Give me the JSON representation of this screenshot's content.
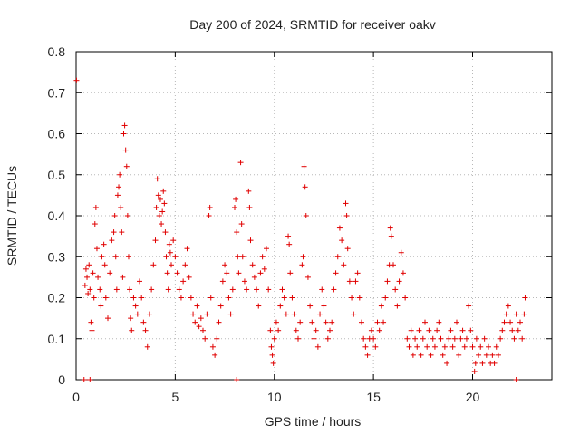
{
  "chart_data": {
    "type": "scatter",
    "title": "Day 200 of 2024, SRMTID for receiver oakv",
    "xlabel": "GPS time / hours",
    "ylabel": "SRMTID / TECUs",
    "xlim": [
      0,
      24
    ],
    "ylim": [
      0,
      0.8
    ],
    "xticks": [
      0,
      5,
      10,
      15,
      20
    ],
    "yticks": [
      0,
      0.1,
      0.2,
      0.3,
      0.4,
      0.5,
      0.6,
      0.7,
      0.8
    ],
    "xtick_labels": [
      "0",
      "5",
      "10",
      "15",
      "20"
    ],
    "ytick_labels": [
      "0",
      "0.1",
      "0.2",
      "0.3",
      "0.4",
      "0.5",
      "0.6",
      "0.7",
      "0.8"
    ],
    "grid": true,
    "marker": "plus",
    "color": "#e00000",
    "series": [
      {
        "name": "SRMTID",
        "points": [
          [
            0.02,
            0.73
          ],
          [
            0.4,
            0.0
          ],
          [
            0.7,
            0.0
          ],
          [
            8.1,
            0.0
          ],
          [
            22.2,
            0.0
          ],
          [
            0.45,
            0.23
          ],
          [
            0.5,
            0.27
          ],
          [
            0.55,
            0.25
          ],
          [
            0.6,
            0.21
          ],
          [
            0.65,
            0.28
          ],
          [
            0.7,
            0.22
          ],
          [
            0.75,
            0.14
          ],
          [
            0.8,
            0.12
          ],
          [
            0.85,
            0.26
          ],
          [
            0.9,
            0.2
          ],
          [
            0.95,
            0.38
          ],
          [
            1.0,
            0.42
          ],
          [
            1.05,
            0.32
          ],
          [
            1.1,
            0.25
          ],
          [
            1.2,
            0.22
          ],
          [
            1.25,
            0.18
          ],
          [
            1.3,
            0.3
          ],
          [
            1.4,
            0.33
          ],
          [
            1.45,
            0.28
          ],
          [
            1.5,
            0.2
          ],
          [
            1.6,
            0.15
          ],
          [
            1.7,
            0.26
          ],
          [
            1.8,
            0.34
          ],
          [
            1.9,
            0.36
          ],
          [
            1.95,
            0.4
          ],
          [
            2.0,
            0.3
          ],
          [
            2.05,
            0.22
          ],
          [
            2.1,
            0.45
          ],
          [
            2.15,
            0.47
          ],
          [
            2.2,
            0.5
          ],
          [
            2.25,
            0.42
          ],
          [
            2.3,
            0.36
          ],
          [
            2.35,
            0.25
          ],
          [
            2.4,
            0.6
          ],
          [
            2.45,
            0.62
          ],
          [
            2.5,
            0.56
          ],
          [
            2.55,
            0.52
          ],
          [
            2.6,
            0.4
          ],
          [
            2.65,
            0.3
          ],
          [
            2.7,
            0.22
          ],
          [
            2.75,
            0.15
          ],
          [
            2.8,
            0.12
          ],
          [
            2.9,
            0.2
          ],
          [
            3.0,
            0.18
          ],
          [
            3.1,
            0.16
          ],
          [
            3.2,
            0.24
          ],
          [
            3.3,
            0.2
          ],
          [
            3.4,
            0.14
          ],
          [
            3.5,
            0.12
          ],
          [
            3.6,
            0.08
          ],
          [
            3.7,
            0.16
          ],
          [
            3.8,
            0.22
          ],
          [
            3.9,
            0.28
          ],
          [
            4.0,
            0.34
          ],
          [
            4.05,
            0.42
          ],
          [
            4.1,
            0.49
          ],
          [
            4.15,
            0.45
          ],
          [
            4.2,
            0.4
          ],
          [
            4.25,
            0.44
          ],
          [
            4.3,
            0.38
          ],
          [
            4.35,
            0.41
          ],
          [
            4.4,
            0.46
          ],
          [
            4.45,
            0.43
          ],
          [
            4.5,
            0.36
          ],
          [
            4.55,
            0.3
          ],
          [
            4.6,
            0.26
          ],
          [
            4.65,
            0.22
          ],
          [
            4.7,
            0.33
          ],
          [
            4.75,
            0.31
          ],
          [
            4.8,
            0.28
          ],
          [
            4.9,
            0.34
          ],
          [
            5.0,
            0.3
          ],
          [
            5.1,
            0.26
          ],
          [
            5.2,
            0.22
          ],
          [
            5.3,
            0.2
          ],
          [
            5.4,
            0.24
          ],
          [
            5.5,
            0.28
          ],
          [
            5.6,
            0.32
          ],
          [
            5.7,
            0.25
          ],
          [
            5.8,
            0.2
          ],
          [
            5.9,
            0.16
          ],
          [
            6.0,
            0.14
          ],
          [
            6.1,
            0.18
          ],
          [
            6.2,
            0.13
          ],
          [
            6.3,
            0.15
          ],
          [
            6.4,
            0.12
          ],
          [
            6.5,
            0.1
          ],
          [
            6.6,
            0.16
          ],
          [
            6.7,
            0.4
          ],
          [
            6.75,
            0.42
          ],
          [
            6.8,
            0.2
          ],
          [
            6.9,
            0.08
          ],
          [
            7.0,
            0.06
          ],
          [
            7.1,
            0.1
          ],
          [
            7.2,
            0.14
          ],
          [
            7.3,
            0.18
          ],
          [
            7.4,
            0.24
          ],
          [
            7.5,
            0.28
          ],
          [
            7.6,
            0.26
          ],
          [
            7.7,
            0.2
          ],
          [
            7.8,
            0.16
          ],
          [
            7.9,
            0.22
          ],
          [
            8.0,
            0.42
          ],
          [
            8.05,
            0.44
          ],
          [
            8.1,
            0.36
          ],
          [
            8.15,
            0.3
          ],
          [
            8.2,
            0.26
          ],
          [
            8.3,
            0.53
          ],
          [
            8.35,
            0.38
          ],
          [
            8.4,
            0.3
          ],
          [
            8.5,
            0.24
          ],
          [
            8.6,
            0.22
          ],
          [
            8.7,
            0.46
          ],
          [
            8.75,
            0.42
          ],
          [
            8.8,
            0.34
          ],
          [
            8.9,
            0.28
          ],
          [
            9.0,
            0.25
          ],
          [
            9.1,
            0.22
          ],
          [
            9.2,
            0.18
          ],
          [
            9.3,
            0.26
          ],
          [
            9.4,
            0.3
          ],
          [
            9.5,
            0.27
          ],
          [
            9.6,
            0.32
          ],
          [
            9.7,
            0.22
          ],
          [
            9.8,
            0.12
          ],
          [
            9.85,
            0.08
          ],
          [
            9.9,
            0.06
          ],
          [
            9.95,
            0.04
          ],
          [
            10.0,
            0.1
          ],
          [
            10.1,
            0.14
          ],
          [
            10.2,
            0.12
          ],
          [
            10.3,
            0.18
          ],
          [
            10.4,
            0.22
          ],
          [
            10.5,
            0.2
          ],
          [
            10.6,
            0.16
          ],
          [
            10.7,
            0.35
          ],
          [
            10.75,
            0.33
          ],
          [
            10.8,
            0.26
          ],
          [
            10.9,
            0.2
          ],
          [
            11.0,
            0.16
          ],
          [
            11.1,
            0.12
          ],
          [
            11.2,
            0.1
          ],
          [
            11.3,
            0.14
          ],
          [
            11.4,
            0.28
          ],
          [
            11.45,
            0.3
          ],
          [
            11.5,
            0.52
          ],
          [
            11.55,
            0.47
          ],
          [
            11.6,
            0.4
          ],
          [
            11.7,
            0.25
          ],
          [
            11.8,
            0.18
          ],
          [
            11.9,
            0.14
          ],
          [
            12.0,
            0.1
          ],
          [
            12.1,
            0.12
          ],
          [
            12.2,
            0.08
          ],
          [
            12.3,
            0.16
          ],
          [
            12.4,
            0.22
          ],
          [
            12.5,
            0.18
          ],
          [
            12.6,
            0.14
          ],
          [
            12.7,
            0.1
          ],
          [
            12.8,
            0.12
          ],
          [
            12.9,
            0.14
          ],
          [
            13.0,
            0.22
          ],
          [
            13.1,
            0.26
          ],
          [
            13.2,
            0.3
          ],
          [
            13.3,
            0.37
          ],
          [
            13.4,
            0.34
          ],
          [
            13.5,
            0.28
          ],
          [
            13.6,
            0.43
          ],
          [
            13.65,
            0.4
          ],
          [
            13.7,
            0.32
          ],
          [
            13.8,
            0.24
          ],
          [
            13.9,
            0.2
          ],
          [
            14.0,
            0.16
          ],
          [
            14.1,
            0.24
          ],
          [
            14.2,
            0.26
          ],
          [
            14.3,
            0.2
          ],
          [
            14.4,
            0.14
          ],
          [
            14.5,
            0.1
          ],
          [
            14.6,
            0.08
          ],
          [
            14.7,
            0.06
          ],
          [
            14.8,
            0.1
          ],
          [
            14.9,
            0.12
          ],
          [
            15.0,
            0.1
          ],
          [
            15.1,
            0.08
          ],
          [
            15.2,
            0.14
          ],
          [
            15.3,
            0.12
          ],
          [
            15.4,
            0.18
          ],
          [
            15.5,
            0.14
          ],
          [
            15.6,
            0.2
          ],
          [
            15.7,
            0.24
          ],
          [
            15.8,
            0.28
          ],
          [
            15.85,
            0.37
          ],
          [
            15.9,
            0.35
          ],
          [
            16.0,
            0.28
          ],
          [
            16.1,
            0.22
          ],
          [
            16.2,
            0.18
          ],
          [
            16.3,
            0.24
          ],
          [
            16.4,
            0.31
          ],
          [
            16.5,
            0.26
          ],
          [
            16.6,
            0.2
          ],
          [
            16.7,
            0.1
          ],
          [
            16.8,
            0.08
          ],
          [
            16.9,
            0.12
          ],
          [
            17.0,
            0.06
          ],
          [
            17.1,
            0.1
          ],
          [
            17.2,
            0.08
          ],
          [
            17.3,
            0.12
          ],
          [
            17.4,
            0.06
          ],
          [
            17.5,
            0.1
          ],
          [
            17.6,
            0.14
          ],
          [
            17.7,
            0.08
          ],
          [
            17.8,
            0.12
          ],
          [
            17.9,
            0.06
          ],
          [
            18.0,
            0.1
          ],
          [
            18.1,
            0.08
          ],
          [
            18.2,
            0.12
          ],
          [
            18.3,
            0.14
          ],
          [
            18.4,
            0.1
          ],
          [
            18.5,
            0.06
          ],
          [
            18.6,
            0.08
          ],
          [
            18.7,
            0.04
          ],
          [
            18.8,
            0.1
          ],
          [
            18.9,
            0.12
          ],
          [
            19.0,
            0.08
          ],
          [
            19.1,
            0.1
          ],
          [
            19.2,
            0.14
          ],
          [
            19.3,
            0.06
          ],
          [
            19.4,
            0.1
          ],
          [
            19.5,
            0.12
          ],
          [
            19.6,
            0.08
          ],
          [
            19.7,
            0.1
          ],
          [
            19.8,
            0.18
          ],
          [
            19.9,
            0.12
          ],
          [
            20.0,
            0.08
          ],
          [
            20.1,
            0.02
          ],
          [
            20.15,
            0.04
          ],
          [
            20.2,
            0.1
          ],
          [
            20.3,
            0.06
          ],
          [
            20.4,
            0.08
          ],
          [
            20.5,
            0.04
          ],
          [
            20.6,
            0.1
          ],
          [
            20.7,
            0.06
          ],
          [
            20.8,
            0.08
          ],
          [
            20.9,
            0.04
          ],
          [
            21.0,
            0.06
          ],
          [
            21.1,
            0.04
          ],
          [
            21.2,
            0.08
          ],
          [
            21.3,
            0.06
          ],
          [
            21.4,
            0.1
          ],
          [
            21.5,
            0.12
          ],
          [
            21.6,
            0.14
          ],
          [
            21.7,
            0.16
          ],
          [
            21.8,
            0.18
          ],
          [
            21.9,
            0.14
          ],
          [
            22.0,
            0.12
          ],
          [
            22.1,
            0.1
          ],
          [
            22.2,
            0.16
          ],
          [
            22.3,
            0.12
          ],
          [
            22.4,
            0.14
          ],
          [
            22.5,
            0.1
          ],
          [
            22.6,
            0.16
          ],
          [
            22.65,
            0.2
          ]
        ]
      }
    ]
  }
}
